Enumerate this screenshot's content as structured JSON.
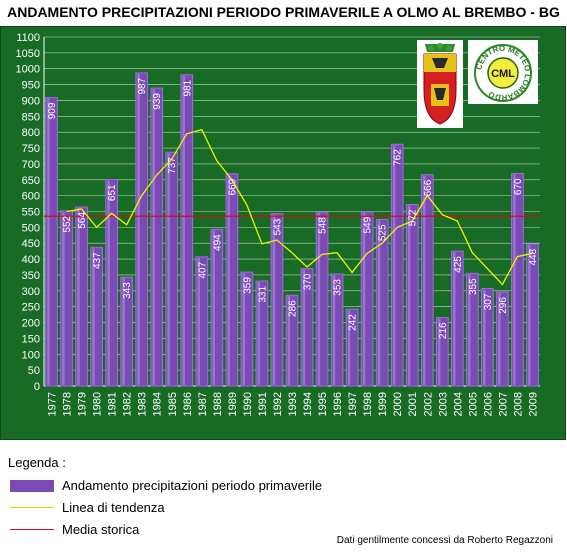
{
  "chart_data": {
    "type": "bar",
    "title": "ANDAMENTO PRECIPITAZIONI PERIODO PRIMAVERILE A OLMO AL BREMBO - BG",
    "categories": [
      "1977",
      "1978",
      "1979",
      "1980",
      "1981",
      "1982",
      "1983",
      "1984",
      "1985",
      "1986",
      "1987",
      "1988",
      "1989",
      "1990",
      "1991",
      "1992",
      "1993",
      "1994",
      "1995",
      "1996",
      "1997",
      "1998",
      "1999",
      "2000",
      "2001",
      "2002",
      "2003",
      "2004",
      "2005",
      "2006",
      "2007",
      "2008",
      "2009"
    ],
    "series": [
      {
        "name": "Andamento precipitazioni periodo primaverile",
        "values": [
          909,
          552,
          564,
          437,
          651,
          343,
          987,
          939,
          737,
          981,
          407,
          494,
          669,
          359,
          331,
          543,
          286,
          370,
          548,
          353,
          242,
          549,
          525,
          762,
          572,
          666,
          216,
          425,
          355,
          307,
          296,
          670,
          448
        ],
        "labels": [
          "909",
          "552",
          "564",
          "437",
          "651",
          "343",
          "987",
          "939",
          "737",
          "981",
          "407",
          "494",
          "669",
          "359",
          "331",
          "543",
          "286",
          "370",
          "548",
          "353",
          "242",
          "549",
          "525",
          "762",
          "572",
          "666",
          "216",
          "425",
          "355",
          "307",
          "296",
          "670",
          "448"
        ]
      },
      {
        "name": "Linea di tendenza",
        "values": [
          null,
          550,
          558,
          500,
          544,
          508,
          600,
          665,
          715,
          795,
          808,
          710,
          650,
          570,
          448,
          460,
          420,
          375,
          415,
          420,
          358,
          418,
          450,
          500,
          520,
          600,
          540,
          520,
          420,
          370,
          320,
          408,
          418
        ]
      },
      {
        "name": "Media storica",
        "values": [
          535,
          535,
          535,
          535,
          535,
          535,
          535,
          535,
          535,
          535,
          535,
          535,
          535,
          535,
          535,
          535,
          535,
          535,
          535,
          535,
          535,
          535,
          535,
          535,
          535,
          535,
          535,
          535,
          535,
          535,
          535,
          535,
          535
        ]
      }
    ],
    "yticks": [
      0,
      50,
      100,
      150,
      200,
      250,
      300,
      350,
      400,
      450,
      500,
      550,
      600,
      650,
      700,
      750,
      800,
      850,
      900,
      950,
      1000,
      1050,
      1100
    ],
    "ylim": [
      0,
      1100
    ],
    "grid": true,
    "colors": {
      "bar_fill": "#7a4bb5",
      "bar_edge": "#9a70d8",
      "trend": "#f2f200",
      "mean": "#d01010",
      "plot_bg": "#176b24",
      "grid": "#ffffff"
    }
  },
  "legend": {
    "title": "Legenda :",
    "items": [
      {
        "label": "Andamento precipitazioni periodo primaverile"
      },
      {
        "label": "Linea di tendenza"
      },
      {
        "label": "Media storica"
      }
    ]
  },
  "logos": {
    "right_text": "CENTRO METEO LOMBARDO",
    "right_inner": "CML"
  },
  "credits": "Dati gentilmente concessi da Roberto Regazzoni"
}
